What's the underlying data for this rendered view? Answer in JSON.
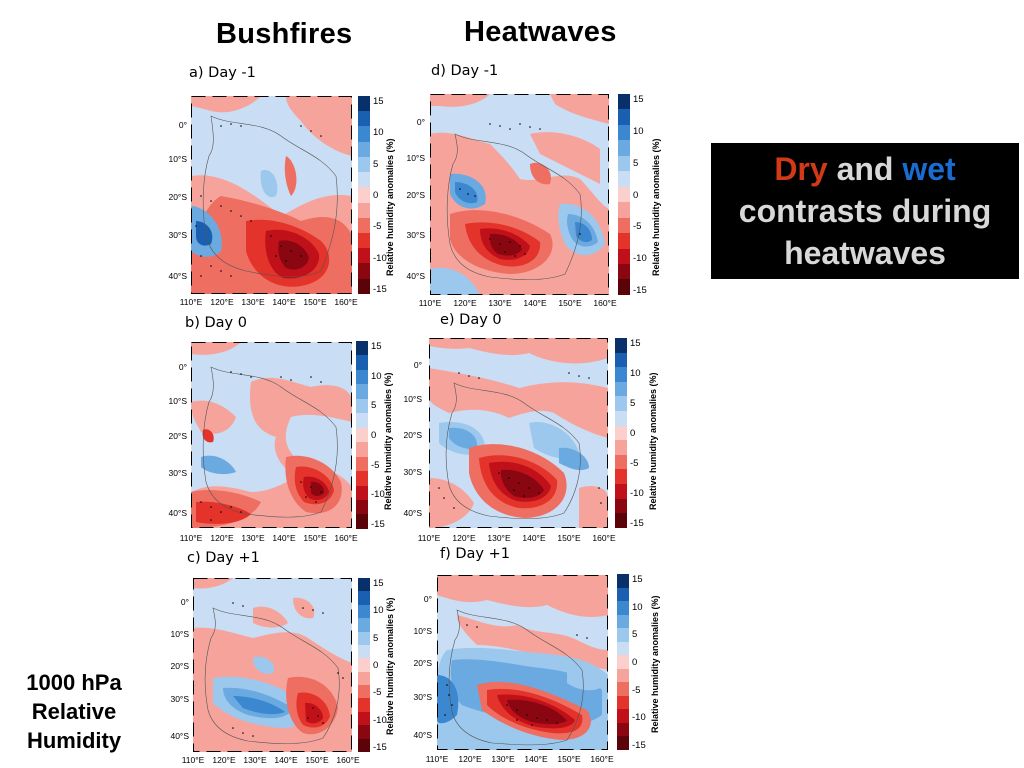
{
  "columns": {
    "left_title": "Bushfires",
    "right_title": "Heatwaves"
  },
  "panels": [
    {
      "id": "a",
      "label": "a) Day -1"
    },
    {
      "id": "b",
      "label": "b) Day 0"
    },
    {
      "id": "c",
      "label": "c) Day +1"
    },
    {
      "id": "d",
      "label": "d) Day -1"
    },
    {
      "id": "e",
      "label": "e) Day 0"
    },
    {
      "id": "f",
      "label": "f) Day +1"
    }
  ],
  "axes": {
    "lat_ticks": [
      "0°",
      "10°S",
      "20°S",
      "30°S",
      "40°S"
    ],
    "lon_ticks": [
      "110°E",
      "120°E",
      "130°E",
      "140°E",
      "150°E",
      "160°E"
    ]
  },
  "colorbar": {
    "label": "Relative humidity anomalies (%)",
    "ticks": [
      "15",
      "10",
      "5",
      "0",
      "-5",
      "-10",
      "-15"
    ],
    "colors": [
      "#08306b",
      "#1b5fb0",
      "#3b87d0",
      "#6aaae0",
      "#9cc8ee",
      "#c9ddf4",
      "#fbd0cc",
      "#f6a49b",
      "#ee6f62",
      "#e3332a",
      "#c0101a",
      "#8a0712",
      "#5a0308"
    ]
  },
  "callout": {
    "word_dry": "Dry",
    "word_and": " and ",
    "word_wet": "wet",
    "line2": "contrasts during",
    "line3": "heatwaves"
  },
  "side_label": {
    "line1": "1000 hPa",
    "line2": "Relative",
    "line3": "Humidity"
  },
  "colors": {
    "dry": "#d23a17",
    "wet": "#1b6cd0",
    "neutral": "#c9ddf4"
  }
}
